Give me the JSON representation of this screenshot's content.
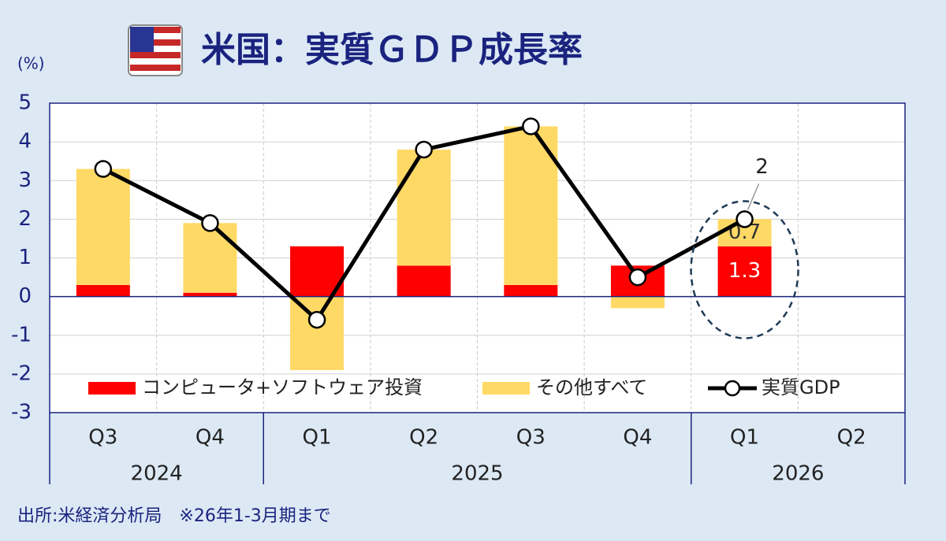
{
  "chart_data": {
    "type": "bar+line",
    "title": "米国：実質ＧＤＰ成長率",
    "y_unit": "(%)",
    "note": "出所:米経済分析局　※26年1-3月期まで",
    "categories": [
      "Q3",
      "Q4",
      "Q1",
      "Q2",
      "Q3",
      "Q4",
      "Q1",
      "Q2"
    ],
    "groups": [
      {
        "name": "2024",
        "count": 2
      },
      {
        "name": "2025",
        "count": 4
      },
      {
        "name": "2026",
        "count": 2
      }
    ],
    "series": [
      {
        "name": "コンピュータ+ソフトウェア投資",
        "type": "bar",
        "color": "#ff0000",
        "values": [
          0.3,
          0.1,
          1.3,
          0.8,
          0.3,
          0.8,
          1.3,
          null
        ],
        "label_index": 6
      },
      {
        "name": "その他すべて",
        "type": "bar",
        "color": "#ffd966",
        "values": [
          3.0,
          1.8,
          -1.9,
          3.0,
          4.1,
          -0.3,
          0.7,
          null
        ],
        "label_index": 6
      },
      {
        "name": "実質GDP",
        "type": "line",
        "color": "#000000",
        "values": [
          3.3,
          1.9,
          -0.6,
          3.8,
          4.4,
          0.5,
          2.0,
          null
        ],
        "label_index": 6
      }
    ],
    "ylim": [
      -3,
      5
    ],
    "yticks": [
      -3,
      -2,
      -1,
      0,
      1,
      2,
      3,
      4,
      5
    ],
    "grid": true
  }
}
